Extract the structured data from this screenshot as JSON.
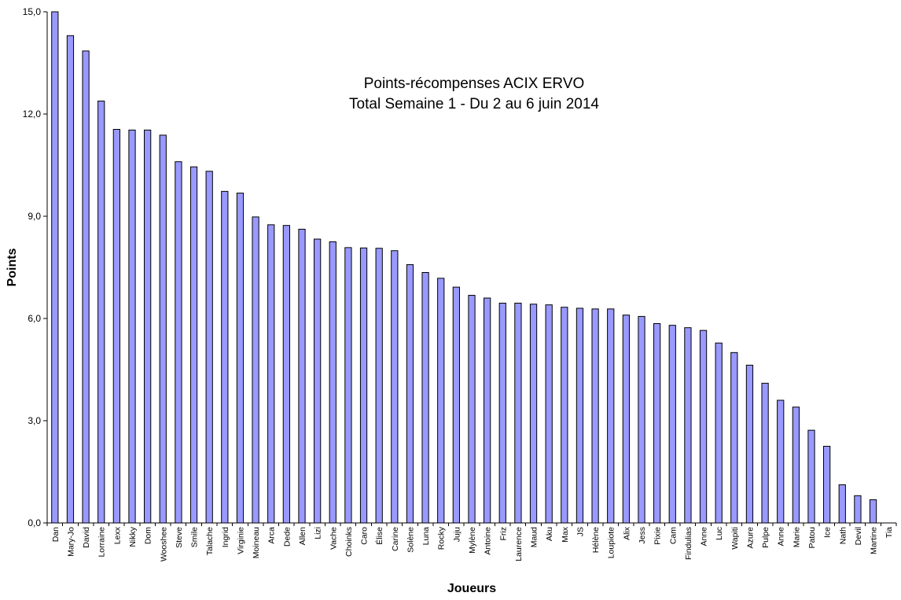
{
  "chart_data": {
    "type": "bar",
    "title": [
      "Points-récompenses ACIX ERVO",
      "Total Semaine 1 - Du 2 au 6 juin 2014"
    ],
    "xlabel": "Joueurs",
    "ylabel": "Points",
    "ylim": [
      0,
      15
    ],
    "yticks": [
      "0,0",
      "3,0",
      "6,0",
      "9,0",
      "12,0",
      "15,0"
    ],
    "grid": false,
    "legend": "none",
    "bar_color": "#9999ff",
    "categories": [
      "Dan",
      "Mary-Jo",
      "David",
      "Lorraine",
      "Lexx",
      "Nikky",
      "Dom",
      "Wooshee",
      "Steve",
      "Smile",
      "Talache",
      "Ingrid",
      "Virginie",
      "Moineau",
      "Arca",
      "Dede",
      "Allen",
      "Lizi",
      "Vache",
      "Choinks",
      "Caro",
      "Élise",
      "Carine",
      "Solène",
      "Luna",
      "Rocky",
      "Juju",
      "Mylène",
      "Antoine",
      "Friz",
      "Laurence",
      "Maud",
      "Aku",
      "Max",
      "JS",
      "Hélène",
      "Loupiote",
      "Alix",
      "Jess",
      "Pixie",
      "Cam",
      "Findulias",
      "Anne",
      "Luc",
      "Wapiti",
      "Azure",
      "Pulpe",
      "Anne",
      "Marie",
      "Patou",
      "Ice",
      "Nath",
      "Devil",
      "Martine",
      "Tia"
    ],
    "values": [
      15.0,
      14.3,
      13.85,
      12.38,
      11.55,
      11.53,
      11.53,
      11.38,
      10.6,
      10.45,
      10.32,
      9.73,
      9.68,
      8.98,
      8.75,
      8.73,
      8.62,
      8.33,
      8.25,
      8.08,
      8.07,
      8.06,
      7.99,
      7.58,
      7.35,
      7.18,
      6.92,
      6.68,
      6.6,
      6.45,
      6.45,
      6.42,
      6.4,
      6.33,
      6.3,
      6.28,
      6.28,
      6.1,
      6.06,
      5.85,
      5.8,
      5.73,
      5.65,
      5.28,
      5.0,
      4.63,
      4.1,
      3.6,
      3.4,
      2.72,
      2.25,
      1.12,
      0.8,
      0.68,
      0.0
    ]
  }
}
